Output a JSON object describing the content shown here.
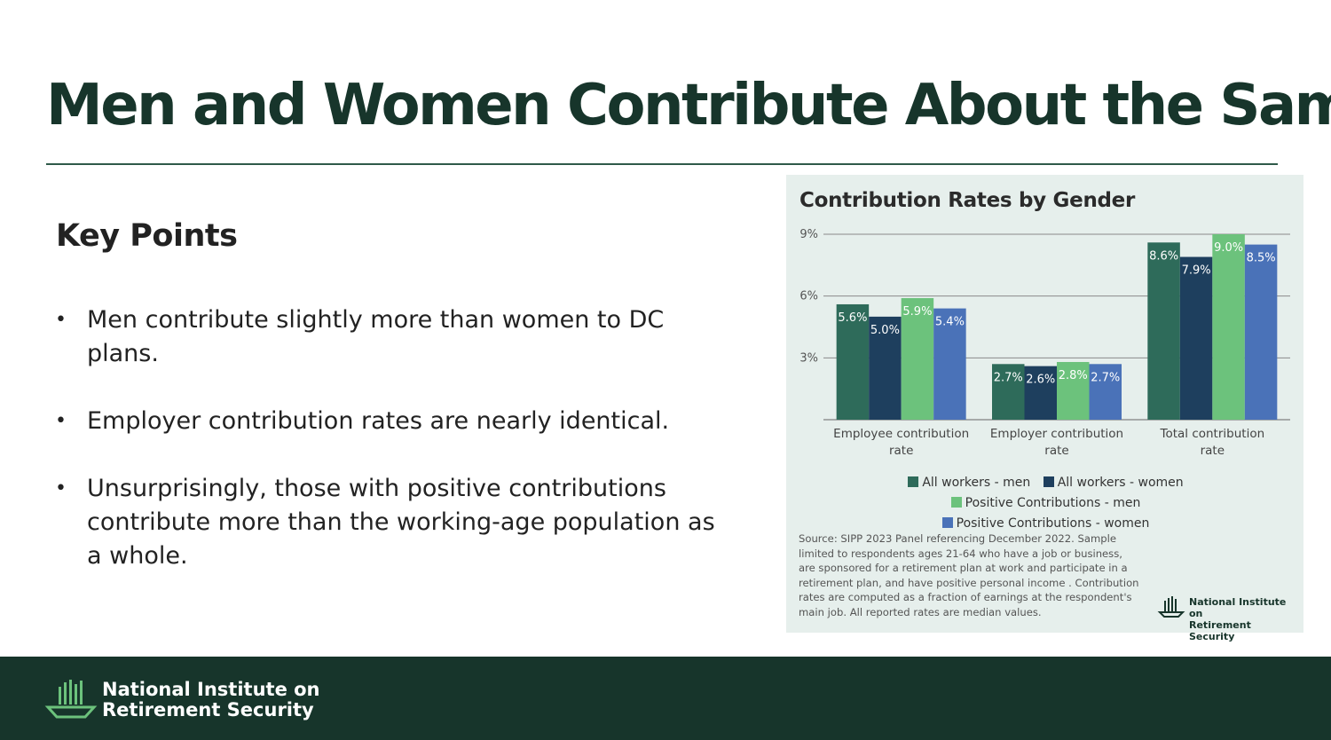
{
  "slide": {
    "title": "Men and Women Contribute About the Same",
    "key_points_heading": "Key Points",
    "bullets": [
      "Men contribute slightly more than women to DC plans.",
      "Employer contribution rates are nearly identical.",
      "Unsurprisingly, those with positive contributions contribute more than the working-age population as a whole."
    ],
    "bullet_glyph": "•"
  },
  "chart_data": {
    "type": "bar",
    "title": "Contribution Rates by Gender",
    "categories": [
      "Employee contribution rate",
      "Employer contribution rate",
      "Total contribution rate"
    ],
    "series": [
      {
        "name": "All workers - men",
        "color": "#2e6b5a",
        "values": [
          5.6,
          2.7,
          8.6
        ],
        "labels": [
          "5.6%",
          "2.7%",
          "8.6%"
        ]
      },
      {
        "name": "All workers - women",
        "color": "#1e3f5e",
        "values": [
          5.0,
          2.6,
          7.9
        ],
        "labels": [
          "5.0%",
          "2.6%",
          "7.9%"
        ]
      },
      {
        "name": "Positive Contributions - men",
        "color": "#6cc27c",
        "values": [
          5.9,
          2.8,
          9.0
        ],
        "labels": [
          "5.9%",
          "2.8%",
          "9.0%"
        ]
      },
      {
        "name": "Positive Contributions - women",
        "color": "#4a72b8",
        "values": [
          5.4,
          2.7,
          8.5
        ],
        "labels": [
          "5.4%",
          "2.7%",
          "8.5%"
        ]
      }
    ],
    "yticks": [
      3,
      6,
      9
    ],
    "ytick_labels": [
      "3%",
      "6%",
      "9%"
    ],
    "ylim": [
      0,
      9
    ],
    "xlabel": "",
    "ylabel": "",
    "grid": true,
    "legend": "bottom"
  },
  "chart_panel": {
    "source_note": "Source: SIPP 2023 Panel referencing December 2022. Sample limited to respondents ages 21-64 who have a job or business, are sponsored for a retirement plan at work and participate in a retirement plan, and have positive personal income . Contribution rates are computed as a fraction of earnings at the respondent's main job. All reported rates are median values.",
    "logo_line1": "National Institute on",
    "logo_line2": "Retirement Security"
  },
  "footer": {
    "org_line1": "National Institute on",
    "org_line2": "Retirement Security"
  },
  "colors": {
    "brand_dark": "#17352b",
    "panel_bg": "#e6efec",
    "logo_green": "#6cc27c"
  }
}
